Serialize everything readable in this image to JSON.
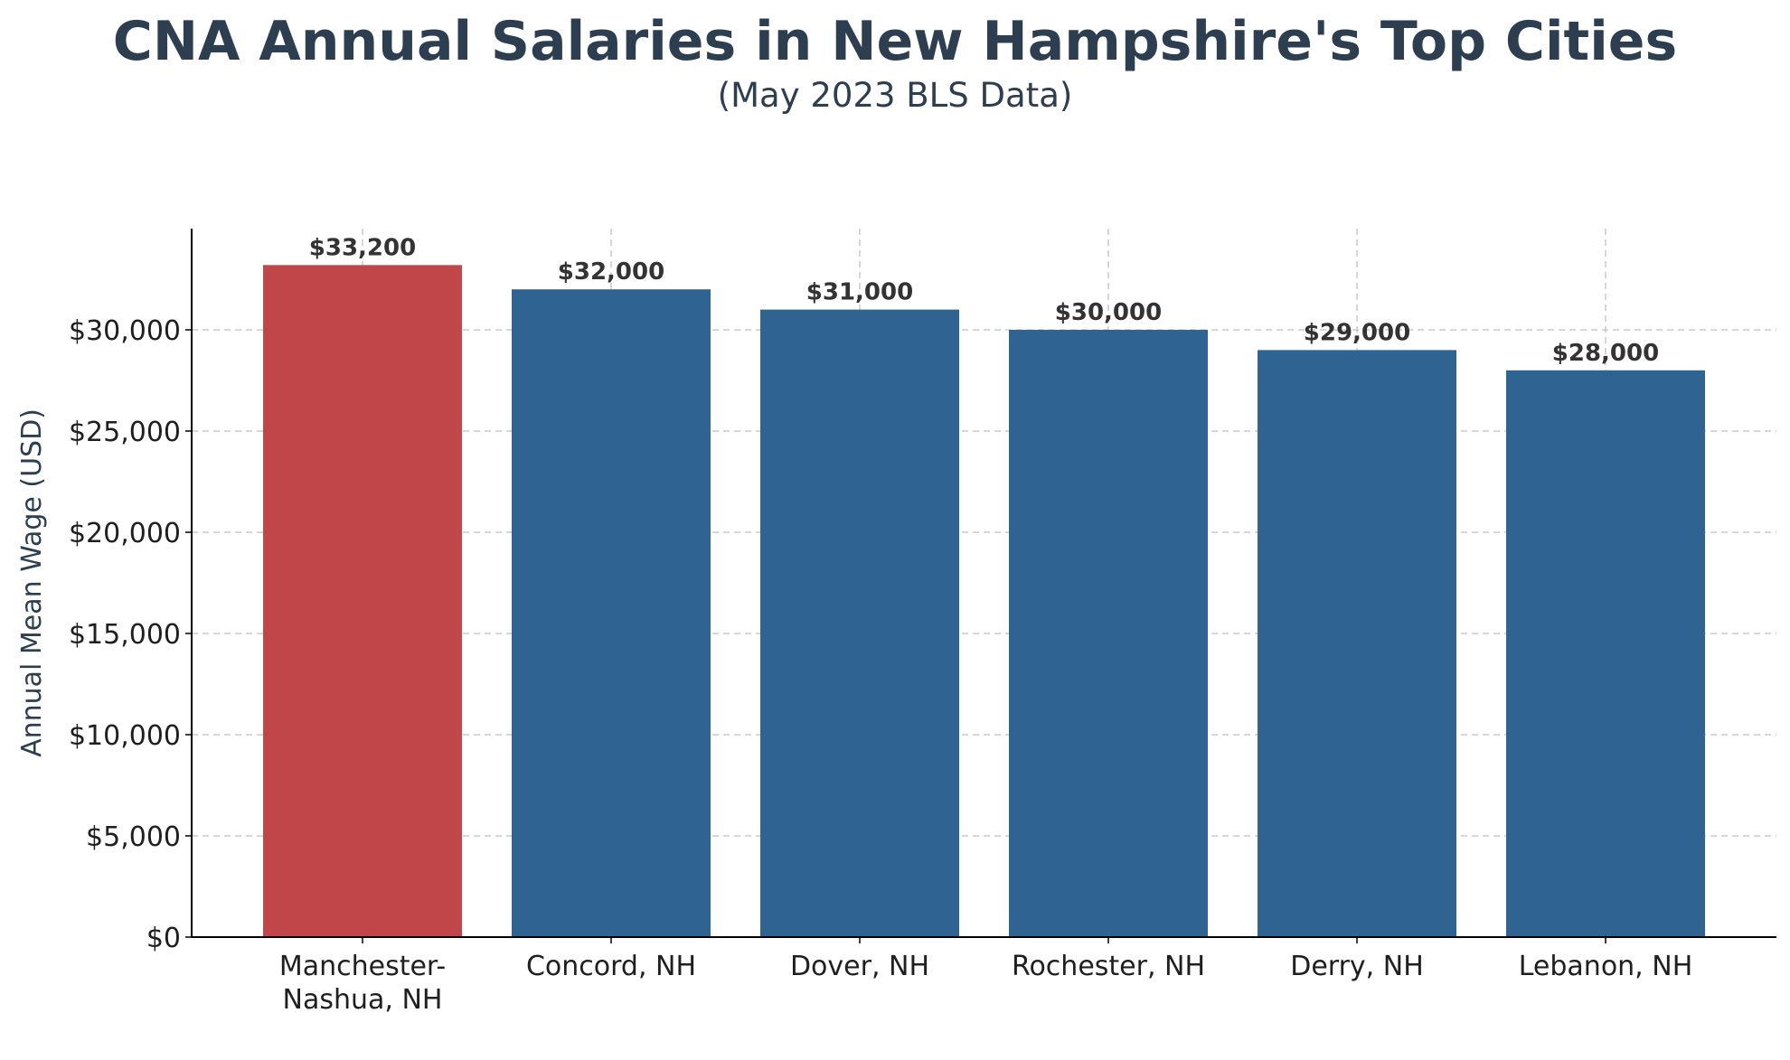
{
  "chart_data": {
    "type": "bar",
    "title": "CNA Annual Salaries in New Hampshire's Top Cities",
    "subtitle": "(May 2023 BLS Data)",
    "xlabel": "",
    "ylabel": "Annual Mean Wage (USD)",
    "ylim": [
      0,
      35000
    ],
    "yticks": [
      0,
      5000,
      10000,
      15000,
      20000,
      25000,
      30000
    ],
    "ytick_labels": [
      "$0",
      "$5,000",
      "$10,000",
      "$15,000",
      "$20,000",
      "$25,000",
      "$30,000"
    ],
    "categories": [
      [
        "Manchester-",
        "Nashua, NH"
      ],
      [
        "Concord, NH"
      ],
      [
        "Dover, NH"
      ],
      [
        "Rochester, NH"
      ],
      [
        "Derry, NH"
      ],
      [
        "Lebanon, NH"
      ]
    ],
    "values": [
      33200,
      32000,
      31000,
      30000,
      29000,
      28000
    ],
    "value_labels": [
      "$33,200",
      "$32,000",
      "$31,000",
      "$30,000",
      "$29,000",
      "$28,000"
    ],
    "bar_colors": [
      "#c0464a",
      "#2f6392",
      "#2f6392",
      "#2f6392",
      "#2f6392",
      "#2f6392"
    ],
    "grid": true,
    "legend": "none"
  }
}
